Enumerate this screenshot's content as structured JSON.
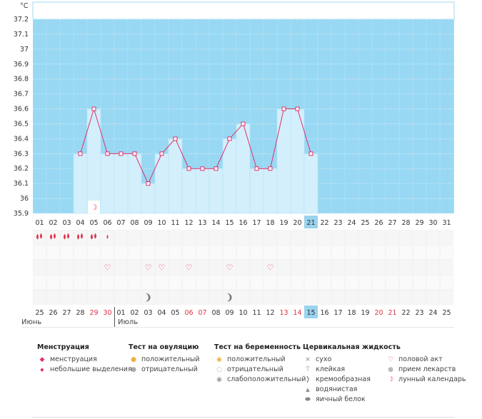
{
  "chart_data": {
    "type": "bar",
    "yunit": "°C",
    "ylim": [
      35.9,
      37.28
    ],
    "y_ticks": [
      "37.2",
      "37.1",
      "37",
      "36.9",
      "36.8",
      "36.7",
      "36.6",
      "36.5",
      "36.4",
      "36.3",
      "36.2",
      "36.1",
      "36",
      "35.9"
    ],
    "cycle_days": [
      "01",
      "02",
      "03",
      "04",
      "05",
      "06",
      "07",
      "08",
      "09",
      "10",
      "11",
      "12",
      "13",
      "14",
      "15",
      "16",
      "17",
      "18",
      "19",
      "20",
      "21",
      "22",
      "23",
      "24",
      "25",
      "26",
      "27",
      "28",
      "29",
      "30",
      "31"
    ],
    "values": [
      null,
      null,
      null,
      36.3,
      36.6,
      36.3,
      36.3,
      36.3,
      36.1,
      36.3,
      36.4,
      36.2,
      36.2,
      36.2,
      36.4,
      36.5,
      36.2,
      36.2,
      36.6,
      36.6,
      36.3,
      null,
      null,
      null,
      null,
      null,
      null,
      null,
      null,
      null,
      null
    ],
    "current_day": "21",
    "calendar_dates": [
      "25",
      "26",
      "27",
      "28",
      "29",
      "30",
      "01",
      "02",
      "03",
      "04",
      "05",
      "06",
      "07",
      "08",
      "09",
      "10",
      "11",
      "12",
      "13",
      "14",
      "15",
      "16",
      "17",
      "18",
      "19",
      "20",
      "21",
      "22",
      "23",
      "24",
      "25"
    ],
    "weekend_dates_idx": [
      4,
      5,
      11,
      12,
      18,
      19,
      25,
      26
    ],
    "current_date": "15",
    "months": [
      "Июнь",
      "Июль"
    ],
    "menstruation_days": [
      0,
      1,
      2,
      3,
      4
    ],
    "light_spotting_days": [
      5
    ],
    "intercourse_days": [
      5,
      8,
      9,
      11,
      14,
      17
    ],
    "creamy_fluid_days": [
      8,
      14
    ],
    "lunar_day": 4,
    "colors": {
      "bg": "#98d8f3",
      "bar": "#d3effc",
      "line": "#e0306a",
      "current": "#9ad3ee",
      "red": "#e0304a"
    }
  },
  "legend": {
    "menstruation": {
      "title": "Менструация",
      "items": [
        "менструация",
        "небольшие выделения"
      ]
    },
    "ovulation": {
      "title": "Тест на овуляцию",
      "items": [
        "положительный",
        "отрицательный"
      ]
    },
    "pregnancy": {
      "title": "Тест на беременность",
      "items": [
        "положительный",
        "отрицательный",
        "слабоположительный"
      ]
    },
    "cervical": {
      "title": "Цервикальная жидкость",
      "items": [
        "сухо",
        "клейкая",
        "кремообразная",
        "водянистая",
        "яичный белок"
      ]
    },
    "other": {
      "items": [
        "половой акт",
        "прием лекарств",
        "лунный календарь"
      ]
    }
  }
}
